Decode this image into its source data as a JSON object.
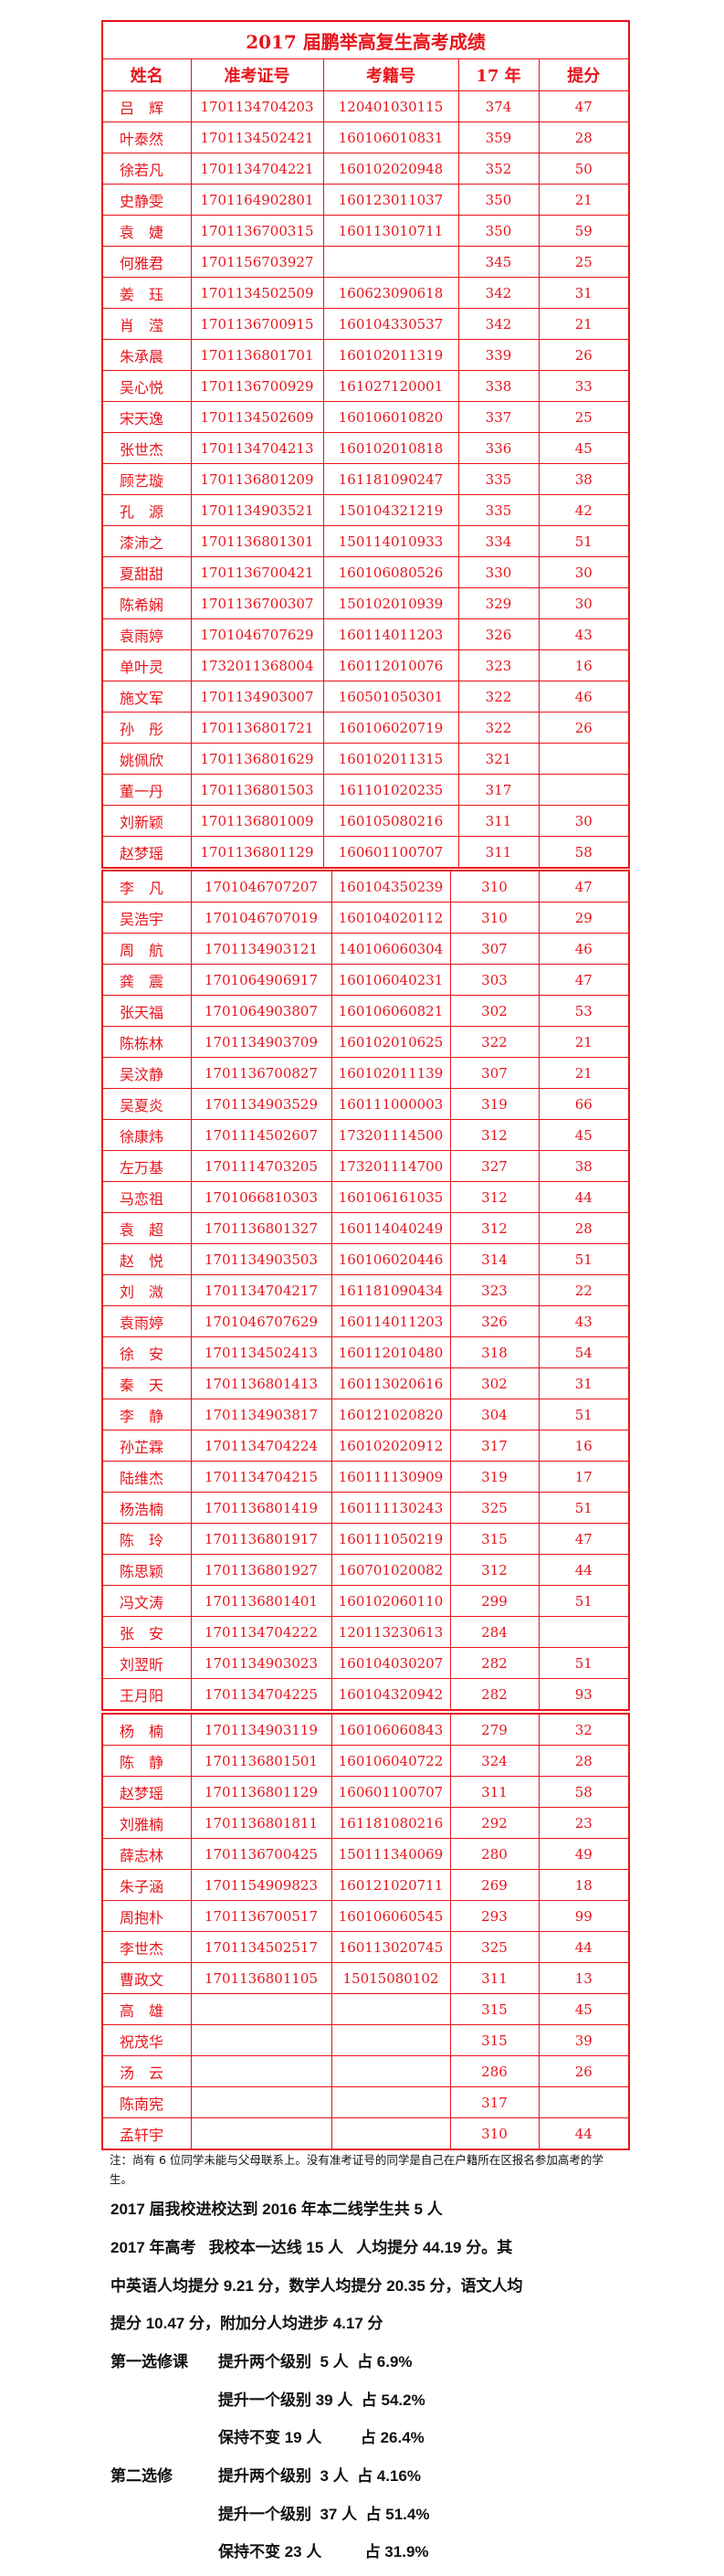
{
  "title": "2017 届鹏举高复生高考成绩",
  "headers": [
    "姓名",
    "准考证号",
    "考籍号",
    "17 年",
    "提分"
  ],
  "blocks": [
    [
      [
        "吕　辉",
        "1701134704203",
        "120401030115",
        "374",
        "47"
      ],
      [
        "叶泰然",
        "1701134502421",
        "160106010831",
        "359",
        "28"
      ],
      [
        "徐若凡",
        "1701134704221",
        "160102020948",
        "352",
        "50"
      ],
      [
        "史静雯",
        "1701164902801",
        "160123011037",
        "350",
        "21"
      ],
      [
        "袁　婕",
        "1701136700315",
        "160113010711",
        "350",
        "59"
      ],
      [
        "何雅君",
        "1701156703927",
        "",
        "345",
        "25"
      ],
      [
        "姜　珏",
        "1701134502509",
        "160623090618",
        "342",
        "31"
      ],
      [
        "肖　滢",
        "1701136700915",
        "160104330537",
        "342",
        "21"
      ],
      [
        "朱承晨",
        "1701136801701",
        "160102011319",
        "339",
        "26"
      ],
      [
        "吴心悦",
        "1701136700929",
        "161027120001",
        "338",
        "33"
      ],
      [
        "宋天逸",
        "1701134502609",
        "160106010820",
        "337",
        "25"
      ],
      [
        "张世杰",
        "1701134704213",
        "160102010818",
        "336",
        "45"
      ],
      [
        "顾艺璇",
        "1701136801209",
        "161181090247",
        "335",
        "38"
      ],
      [
        "孔　源",
        "1701134903521",
        "150104321219",
        "335",
        "42"
      ],
      [
        "漆沛之",
        "1701136801301",
        "150114010933",
        "334",
        "51"
      ],
      [
        "夏甜甜",
        "1701136700421",
        "160106080526",
        "330",
        "30"
      ],
      [
        "陈希娴",
        "1701136700307",
        "150102010939",
        "329",
        "30"
      ],
      [
        "袁雨婷",
        "1701046707629",
        "160114011203",
        "326",
        "43"
      ],
      [
        "单叶灵",
        "1732011368004",
        "160112010076",
        "323",
        "16"
      ],
      [
        "施文军",
        "1701134903007",
        "160501050301",
        "322",
        "46"
      ],
      [
        "孙　彤",
        "1701136801721",
        "160106020719",
        "322",
        "26"
      ],
      [
        "姚佩欣",
        "1701136801629",
        "160102011315",
        "321",
        ""
      ],
      [
        "董一丹",
        "1701136801503",
        "161101020235",
        "317",
        ""
      ],
      [
        "刘新颖",
        "1701136801009",
        "160105080216",
        "311",
        "30"
      ],
      [
        "赵梦瑶",
        "1701136801129",
        "160601100707",
        "311",
        "58"
      ]
    ],
    [
      [
        "李　凡",
        "1701046707207",
        "160104350239",
        "310",
        "47"
      ],
      [
        "吴浩宇",
        "1701046707019",
        "160104020112",
        "310",
        "29"
      ],
      [
        "周　航",
        "1701134903121",
        "140106060304",
        "307",
        "46"
      ],
      [
        "龚　震",
        "1701064906917",
        "160106040231",
        "303",
        "47"
      ],
      [
        "张天福",
        "1701064903807",
        "160106060821",
        "302",
        "53"
      ],
      [
        "陈栋林",
        "1701134903709",
        "160102010625",
        "322",
        "21"
      ],
      [
        "吴汶静",
        "1701136700827",
        "160102011139",
        "307",
        "21"
      ],
      [
        "吴夏炎",
        "1701134903529",
        "160111000003",
        "319",
        "66"
      ],
      [
        "徐康炜",
        "1701114502607",
        "173201114500",
        "312",
        "45"
      ],
      [
        "左万基",
        "1701114703205",
        "173201114700",
        "327",
        "38"
      ],
      [
        "马恋祖",
        "1701066810303",
        "160106161035",
        "312",
        "44"
      ],
      [
        "袁　超",
        "1701136801327",
        "160114040249",
        "312",
        "28"
      ],
      [
        "赵　悦",
        "1701134903503",
        "160106020446",
        "314",
        "51"
      ],
      [
        "刘　溦",
        "1701134704217",
        "161181090434",
        "323",
        "22"
      ],
      [
        "袁雨婷",
        "1701046707629",
        "160114011203",
        "326",
        "43"
      ],
      [
        "徐　安",
        "1701134502413",
        "160112010480",
        "318",
        "54"
      ],
      [
        "秦　天",
        "1701136801413",
        "160113020616",
        "302",
        "31"
      ],
      [
        "李　静",
        "1701134903817",
        "160121020820",
        "304",
        "51"
      ],
      [
        "孙芷霖",
        "1701134704224",
        "160102020912",
        "317",
        "16"
      ],
      [
        "陆维杰",
        "1701134704215",
        "160111130909",
        "319",
        "17"
      ],
      [
        "杨浩楠",
        "1701136801419",
        "160111130243",
        "325",
        "51"
      ],
      [
        "陈　玲",
        "1701136801917",
        "160111050219",
        "315",
        "47"
      ],
      [
        "陈思颖",
        "1701136801927",
        "160701020082",
        "312",
        "44"
      ],
      [
        "冯文涛",
        "1701136801401",
        "160102060110",
        "299",
        "51"
      ],
      [
        "张　安",
        "1701134704222",
        "120113230613",
        "284",
        ""
      ],
      [
        "刘翌昕",
        "1701134903023",
        "160104030207",
        "282",
        "51"
      ],
      [
        "王月阳",
        "1701134704225",
        "160104320942",
        "282",
        "93"
      ]
    ],
    [
      [
        "杨　楠",
        "1701134903119",
        "160106060843",
        "279",
        "32"
      ],
      [
        "陈　静",
        "1701136801501",
        "160106040722",
        "324",
        "28"
      ],
      [
        "赵梦瑶",
        "1701136801129",
        "160601100707",
        "311",
        "58"
      ],
      [
        "刘雅楠",
        "1701136801811",
        "161181080216",
        "292",
        "23"
      ],
      [
        "薛志林",
        "1701136700425",
        "150111340069",
        "280",
        "49"
      ],
      [
        "朱子涵",
        "1701154909823",
        "160121020711",
        "269",
        "18"
      ],
      [
        "周抱朴",
        "1701136700517",
        "160106060545",
        "293",
        "99"
      ],
      [
        "李世杰",
        "1701134502517",
        "160113020745",
        "325",
        "44"
      ],
      [
        "曹政文",
        "1701136801105",
        "15015080102",
        "311",
        "13"
      ],
      [
        "高　雄",
        "",
        "",
        "315",
        "45"
      ],
      [
        "祝茂华",
        "",
        "",
        "315",
        "39"
      ],
      [
        "汤　云",
        "",
        "",
        "286",
        "26"
      ],
      [
        "陈南宪",
        "",
        "",
        "317",
        ""
      ],
      [
        "孟轩宇",
        "",
        "",
        "310",
        "44"
      ]
    ]
  ],
  "note": "注：尚有 6 位同学未能与父母联系上。没有准考证号的同学是自己在户籍所在区报名参加高考的学生。",
  "summary": {
    "line1": "2017 届我校进校达到 2016 年本二线学生共 5 人",
    "line2": "2017 年高考   我校本一达线 15 人   人均提分 44.19 分。其",
    "line3": "中英语人均提分 9.21 分，数学人均提分 20.35 分，语文人均",
    "line4": "提分 10.47 分，附加分人均进步 4.17 分",
    "elective1": {
      "label": "第一选修课",
      "rows": [
        "提升两个级别  5 人  占 6.9%",
        "提升一个级别 39 人  占 54.2%",
        "保持不变 19 人         占 26.4%"
      ]
    },
    "elective2": {
      "label": "第二选修",
      "rows": [
        "提升两个级别  3 人  占 4.16%",
        "提升一个级别  37 人  占 51.4%",
        "保持不变 23 人          占 31.9%"
      ]
    }
  },
  "colors": {
    "table_red": "#e8141b",
    "text": "#111111"
  }
}
